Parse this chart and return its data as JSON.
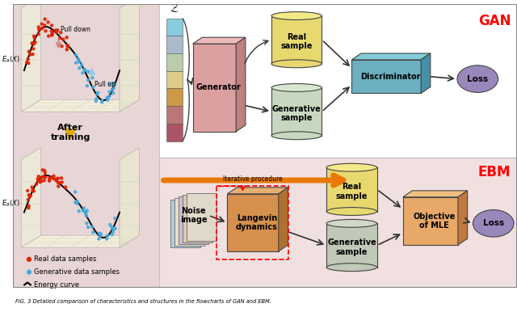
{
  "title": "FIG. 3 Detailed comparison of characteristics and structures in the flowcharts of GAN and EBM.",
  "gan_label": "GAN",
  "ebm_label": "EBM",
  "left_bg": "#e8d5d5",
  "right_top_bg": "#ffffff",
  "right_bottom_bg": "#f0e0e0",
  "legend_real": "Real data samples",
  "legend_gen": "Generative data samples",
  "legend_curve": "Energy curve",
  "after_training": "After\ntraining",
  "pull_down": "Pull down",
  "pull_up": "Pull up",
  "iterative_label": "Iterative procedure",
  "z_label": "Z",
  "generator_label": "Generator",
  "real_sample_gan": "Real\nsample",
  "gen_sample_gan": "Generative\nsample",
  "discriminator_label": "Discriminator",
  "loss_gan": "Loss",
  "noise_label": "Noise\nimage",
  "langevin_label": "Langevin\ndynamics",
  "mle_label": "Objective\nof MLE",
  "real_sample_ebm": "Real\nsample",
  "gen_sample_ebm": "Generative\nsample",
  "loss_ebm": "Loss",
  "colors_z": [
    "#88ccdd",
    "#aabbcc",
    "#bbccaa",
    "#ddcc88",
    "#cc9944",
    "#bb7777",
    "#aa5566"
  ],
  "cyl_real_face": "#e8d870",
  "cyl_real_top": "#f5e888",
  "cyl_gen_gan_face": "#c8d8c0",
  "cyl_gen_gan_top": "#d8e8d0",
  "cyl_gen_ebm_face": "#c0c8b8",
  "cyl_gen_ebm_top": "#d0d8c8",
  "box_gen_face": "#dda0a0",
  "box_gen_side": "#c08080",
  "box_gen_top": "#eebbbb",
  "box_disc_face": "#6ab0c0",
  "box_disc_side": "#4490a8",
  "box_disc_top": "#80ccd8",
  "box_lang_face": "#d4904c",
  "box_lang_side": "#b07030",
  "box_lang_top": "#e8b070",
  "box_mle_face": "#e8a868",
  "box_mle_side": "#c07840",
  "box_mle_top": "#f0c080",
  "loss_fill": "#9988bb",
  "orange_arrow": "#e87800"
}
